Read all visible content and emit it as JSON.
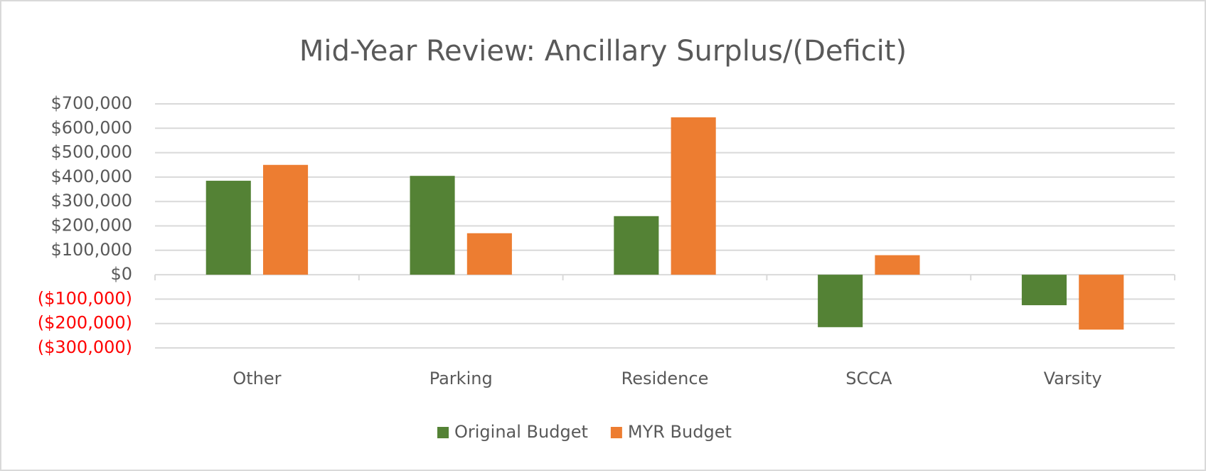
{
  "chart_data": {
    "type": "bar",
    "title": "Mid-Year Review: Ancillary Surplus/(Deficit)",
    "categories": [
      "Other",
      "Parking",
      "Residence",
      "SCCA",
      "Varsity"
    ],
    "series": [
      {
        "name": "Original Budget",
        "color": "#548235",
        "values": [
          385000,
          405000,
          240000,
          -215000,
          -125000
        ]
      },
      {
        "name": "MYR Budget",
        "color": "#ed7d31",
        "values": [
          450000,
          170000,
          645000,
          80000,
          -225000
        ]
      }
    ],
    "ylim": [
      -300000,
      700000
    ],
    "yticks": [
      {
        "value": -300000,
        "label": "($300,000)"
      },
      {
        "value": -200000,
        "label": "($200,000)"
      },
      {
        "value": -100000,
        "label": "($100,000)"
      },
      {
        "value": 0,
        "label": "$0"
      },
      {
        "value": 100000,
        "label": "$100,000"
      },
      {
        "value": 200000,
        "label": "$200,000"
      },
      {
        "value": 300000,
        "label": "$300,000"
      },
      {
        "value": 400000,
        "label": "$400,000"
      },
      {
        "value": 500000,
        "label": "$500,000"
      },
      {
        "value": 600000,
        "label": "$600,000"
      },
      {
        "value": 700000,
        "label": "$700,000"
      }
    ],
    "negative_tick_color": "#ff0000",
    "grid": true,
    "legend": "bottom"
  }
}
